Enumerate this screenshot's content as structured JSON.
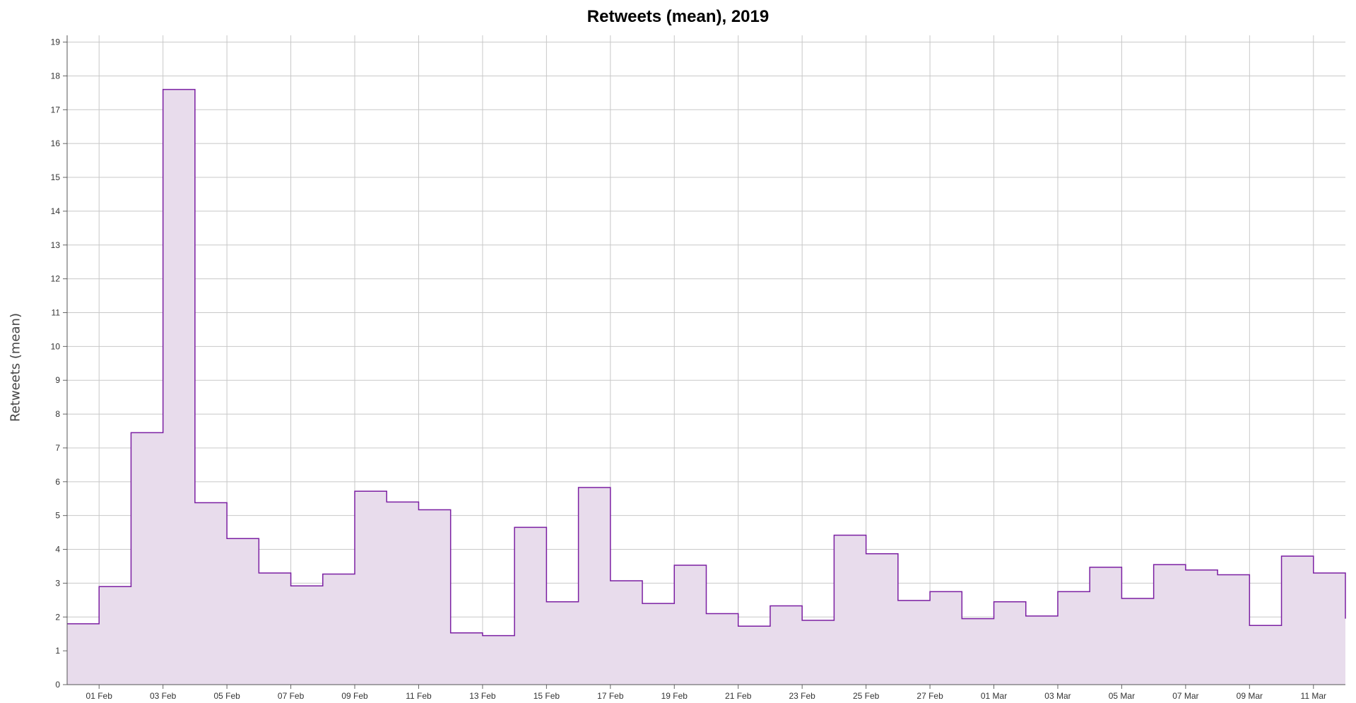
{
  "chart_data": {
    "type": "area",
    "step": true,
    "title": "Retweets (mean), 2019",
    "xlabel": "",
    "ylabel": "Retweets (mean)",
    "ylim": [
      0,
      19.2
    ],
    "y_ticks": [
      0,
      1,
      2,
      3,
      4,
      5,
      6,
      7,
      8,
      9,
      10,
      11,
      12,
      13,
      14,
      15,
      16,
      17,
      18,
      19
    ],
    "x_range": [
      "2019-01-31",
      "2019-03-12"
    ],
    "x_tick_labels": [
      "01 Feb",
      "03 Feb",
      "05 Feb",
      "07 Feb",
      "09 Feb",
      "11 Feb",
      "13 Feb",
      "15 Feb",
      "17 Feb",
      "19 Feb",
      "21 Feb",
      "23 Feb",
      "25 Feb",
      "27 Feb",
      "01 Mar",
      "03 Mar",
      "05 Mar",
      "07 Mar",
      "09 Mar",
      "11 Mar"
    ],
    "grid": true,
    "series": [
      {
        "color": "#7b1fa2",
        "fill": "#e8dcec",
        "x": [
          "2019-01-31",
          "2019-02-01",
          "2019-02-02",
          "2019-02-03",
          "2019-02-04",
          "2019-02-05",
          "2019-02-06",
          "2019-02-07",
          "2019-02-08",
          "2019-02-09",
          "2019-02-10",
          "2019-02-11",
          "2019-02-12",
          "2019-02-13",
          "2019-02-14",
          "2019-02-15",
          "2019-02-16",
          "2019-02-17",
          "2019-02-18",
          "2019-02-19",
          "2019-02-20",
          "2019-02-21",
          "2019-02-22",
          "2019-02-23",
          "2019-02-24",
          "2019-02-25",
          "2019-02-26",
          "2019-02-27",
          "2019-02-28",
          "2019-03-01",
          "2019-03-02",
          "2019-03-03",
          "2019-03-04",
          "2019-03-05",
          "2019-03-06",
          "2019-03-07",
          "2019-03-08",
          "2019-03-09",
          "2019-03-10",
          "2019-03-11"
        ],
        "values": [
          1.8,
          2.9,
          7.45,
          17.6,
          5.38,
          4.32,
          3.3,
          2.92,
          3.27,
          5.72,
          5.4,
          5.17,
          1.53,
          1.45,
          4.65,
          2.45,
          5.83,
          3.07,
          2.4,
          3.53,
          2.1,
          1.73,
          2.33,
          1.9,
          4.42,
          3.87,
          2.49,
          2.75,
          1.95,
          2.45,
          2.03,
          2.75,
          3.47,
          2.55,
          3.55,
          3.39,
          3.25,
          1.75,
          3.8,
          3.3
        ]
      }
    ]
  }
}
